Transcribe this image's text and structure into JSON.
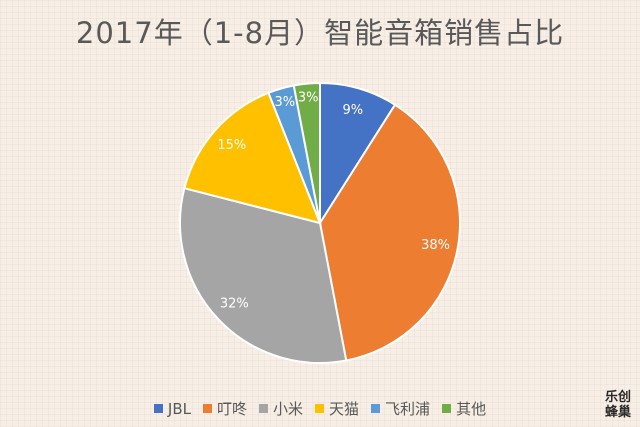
{
  "chart_data": {
    "type": "pie",
    "title": "2017年（1-8月）智能音箱销售占比",
    "slices": [
      {
        "name": "JBL",
        "value": 9,
        "label": "9%",
        "color": "#4472c4"
      },
      {
        "name": "叮咚",
        "value": 38,
        "label": "38%",
        "color": "#ed7d31"
      },
      {
        "name": "小米",
        "value": 32,
        "label": "32%",
        "color": "#a5a5a5"
      },
      {
        "name": "天猫",
        "value": 15,
        "label": "15%",
        "color": "#ffc000"
      },
      {
        "name": "飞利浦",
        "value": 3,
        "label": "3%",
        "color": "#5b9bd5"
      },
      {
        "name": "其他",
        "value": 3,
        "label": "3%",
        "color": "#70ad47"
      }
    ],
    "legend_position": "bottom",
    "start_angle": "12 o'clock",
    "direction": "clockwise"
  },
  "watermark": {
    "line1": "乐创",
    "line2": "蜂巢"
  }
}
